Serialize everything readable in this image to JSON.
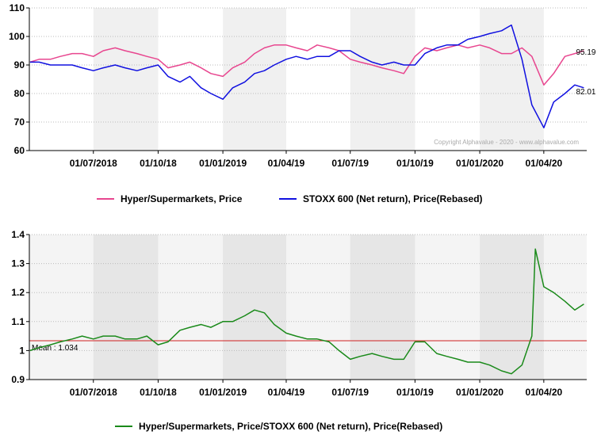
{
  "chart_data": [
    {
      "type": "line",
      "x_ticks": [
        "01/07/2018",
        "01/10/18",
        "01/01/2019",
        "01/04/19",
        "01/07/19",
        "01/10/19",
        "01/01/2020",
        "01/04/20"
      ],
      "ylim": [
        60,
        110
      ],
      "y_ticks": [
        60,
        70,
        80,
        90,
        100,
        110
      ],
      "grid": "horizontal dotted, alternating shaded quarter bands",
      "copyright": "Copyright Alphavalue - 2020 - www.alphavalue.com",
      "series": [
        {
          "name": "Hyper/Supermarkets, Price",
          "color": "#e8468f",
          "end_label": "95.19",
          "x": [
            "2018-04-02",
            "2018-04-15",
            "2018-05-01",
            "2018-05-15",
            "2018-06-01",
            "2018-06-15",
            "2018-07-01",
            "2018-07-15",
            "2018-08-01",
            "2018-08-15",
            "2018-09-01",
            "2018-09-15",
            "2018-10-01",
            "2018-10-15",
            "2018-11-01",
            "2018-11-15",
            "2018-12-01",
            "2018-12-15",
            "2019-01-01",
            "2019-01-15",
            "2019-02-01",
            "2019-02-15",
            "2019-03-01",
            "2019-03-15",
            "2019-04-01",
            "2019-04-15",
            "2019-05-01",
            "2019-05-15",
            "2019-06-01",
            "2019-06-15",
            "2019-07-01",
            "2019-07-15",
            "2019-08-01",
            "2019-08-15",
            "2019-09-01",
            "2019-09-15",
            "2019-10-01",
            "2019-10-15",
            "2019-11-01",
            "2019-11-15",
            "2019-12-01",
            "2019-12-15",
            "2020-01-01",
            "2020-01-15",
            "2020-02-01",
            "2020-02-15",
            "2020-03-01",
            "2020-03-15",
            "2020-04-01",
            "2020-04-15",
            "2020-05-01",
            "2020-05-15",
            "2020-05-28"
          ],
          "values": [
            91,
            92,
            92,
            93,
            94,
            94,
            93,
            95,
            96,
            95,
            94,
            93,
            92,
            89,
            90,
            91,
            89,
            87,
            86,
            89,
            91,
            94,
            96,
            97,
            97,
            96,
            95,
            97,
            96,
            95,
            92,
            91,
            90,
            89,
            88,
            87,
            93,
            96,
            95,
            96,
            97,
            96,
            97,
            96,
            94,
            94,
            96,
            93,
            83,
            87,
            93,
            94,
            95
          ]
        },
        {
          "name": "STOXX 600 (Net return), Price(Rebased)",
          "color": "#1010e0",
          "end_label": "82.01",
          "x": [
            "2018-04-02",
            "2018-04-15",
            "2018-05-01",
            "2018-05-15",
            "2018-06-01",
            "2018-06-15",
            "2018-07-01",
            "2018-07-15",
            "2018-08-01",
            "2018-08-15",
            "2018-09-01",
            "2018-09-15",
            "2018-10-01",
            "2018-10-15",
            "2018-11-01",
            "2018-11-15",
            "2018-12-01",
            "2018-12-15",
            "2019-01-01",
            "2019-01-15",
            "2019-02-01",
            "2019-02-15",
            "2019-03-01",
            "2019-03-15",
            "2019-04-01",
            "2019-04-15",
            "2019-05-01",
            "2019-05-15",
            "2019-06-01",
            "2019-06-15",
            "2019-07-01",
            "2019-07-15",
            "2019-08-01",
            "2019-08-15",
            "2019-09-01",
            "2019-09-15",
            "2019-10-01",
            "2019-10-15",
            "2019-11-01",
            "2019-11-15",
            "2019-12-01",
            "2019-12-15",
            "2020-01-01",
            "2020-01-15",
            "2020-02-01",
            "2020-02-15",
            "2020-03-01",
            "2020-03-15",
            "2020-04-01",
            "2020-04-15",
            "2020-05-01",
            "2020-05-15",
            "2020-05-28"
          ],
          "values": [
            91,
            91,
            90,
            90,
            90,
            89,
            88,
            89,
            90,
            89,
            88,
            89,
            90,
            86,
            84,
            86,
            82,
            80,
            78,
            82,
            84,
            87,
            88,
            90,
            92,
            93,
            92,
            93,
            93,
            95,
            95,
            93,
            91,
            90,
            91,
            90,
            90,
            94,
            96,
            97,
            97,
            99,
            100,
            101,
            102,
            104,
            92,
            76,
            68,
            77,
            80,
            83,
            82
          ]
        }
      ]
    },
    {
      "type": "line",
      "x_ticks": [
        "01/07/2018",
        "01/10/18",
        "01/01/2019",
        "01/04/19",
        "01/07/19",
        "01/10/19",
        "01/01/2020",
        "01/04/20"
      ],
      "ylim": [
        0.9,
        1.4
      ],
      "y_ticks": [
        "0.9",
        "1",
        "1.1",
        "1.2",
        "1.3",
        "1.4"
      ],
      "grid": "horizontal dotted, alternating shaded quarter bands",
      "mean": 1.034,
      "mean_label": "Mean : 1.034",
      "series": [
        {
          "name": "Hyper/Supermarkets, Price/STOXX 600 (Net return), Price(Rebased)",
          "color": "#1a8a1a",
          "x": [
            "2018-04-02",
            "2018-04-15",
            "2018-05-01",
            "2018-05-15",
            "2018-06-01",
            "2018-06-15",
            "2018-07-01",
            "2018-07-15",
            "2018-08-01",
            "2018-08-15",
            "2018-09-01",
            "2018-09-15",
            "2018-10-01",
            "2018-10-15",
            "2018-11-01",
            "2018-11-15",
            "2018-12-01",
            "2018-12-15",
            "2019-01-01",
            "2019-01-15",
            "2019-02-01",
            "2019-02-15",
            "2019-03-01",
            "2019-03-15",
            "2019-04-01",
            "2019-04-15",
            "2019-05-01",
            "2019-05-15",
            "2019-06-01",
            "2019-06-15",
            "2019-07-01",
            "2019-07-15",
            "2019-08-01",
            "2019-08-15",
            "2019-09-01",
            "2019-09-15",
            "2019-10-01",
            "2019-10-15",
            "2019-11-01",
            "2019-11-15",
            "2019-12-01",
            "2019-12-15",
            "2020-01-01",
            "2020-01-15",
            "2020-02-01",
            "2020-02-15",
            "2020-03-01",
            "2020-03-15",
            "2020-03-20",
            "2020-04-01",
            "2020-04-15",
            "2020-05-01",
            "2020-05-15",
            "2020-05-28"
          ],
          "values": [
            1.0,
            1.01,
            1.02,
            1.03,
            1.04,
            1.05,
            1.04,
            1.05,
            1.05,
            1.04,
            1.04,
            1.05,
            1.02,
            1.03,
            1.07,
            1.08,
            1.09,
            1.08,
            1.1,
            1.1,
            1.12,
            1.14,
            1.13,
            1.09,
            1.06,
            1.05,
            1.04,
            1.04,
            1.03,
            1.0,
            0.97,
            0.98,
            0.99,
            0.98,
            0.97,
            0.97,
            1.03,
            1.03,
            0.99,
            0.98,
            0.97,
            0.96,
            0.96,
            0.95,
            0.93,
            0.92,
            0.95,
            1.05,
            1.35,
            1.22,
            1.2,
            1.17,
            1.14,
            1.16
          ]
        }
      ]
    }
  ],
  "legend_top": {
    "series1": "Hyper/Supermarkets, Price",
    "series2": "STOXX 600 (Net return), Price(Rebased)"
  },
  "legend_bottom": {
    "series1": "Hyper/Supermarkets, Price/STOXX 600 (Net return), Price(Rebased)"
  }
}
